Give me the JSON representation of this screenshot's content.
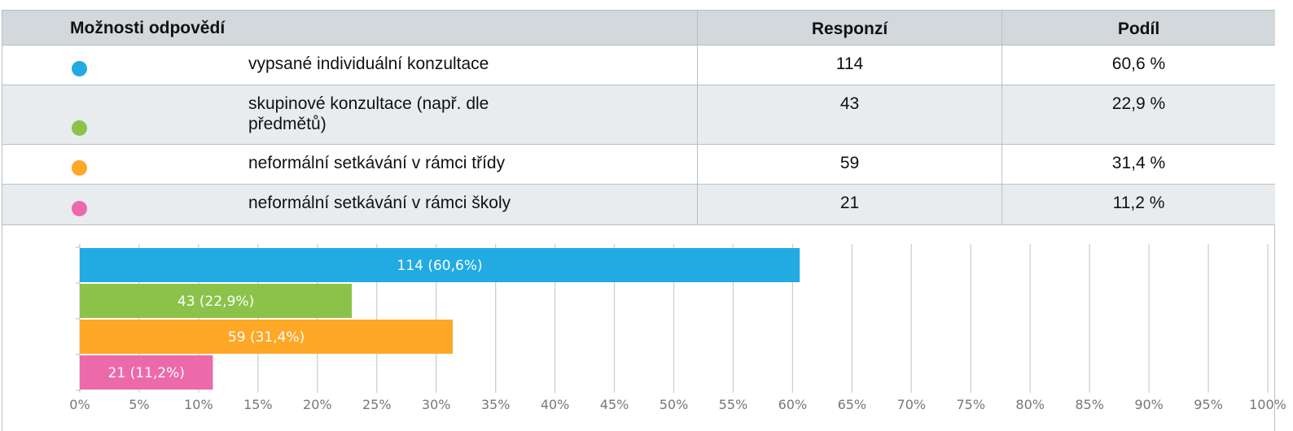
{
  "table": {
    "headers": [
      "Možnosti odpovědí",
      "Responzí",
      "Podíl"
    ],
    "rows": [
      [
        "vypsané individuální konzultace",
        114,
        "60,6 %"
      ],
      [
        "skupinové konzultace (např. dle předmětů)",
        43,
        "22,9 %"
      ],
      [
        "neformální setkávání v rámci třídy",
        59,
        "31,4 %"
      ],
      [
        "neformální setkávání v rámci  školy",
        21,
        "11,2 %"
      ]
    ]
  },
  "chart_data": {
    "type": "hbar",
    "values": [
      60.6,
      22.9,
      31.4,
      11.2
    ],
    "value_labels": [
      "114 (60,6%)",
      "43 (22,9%)",
      "59 (31,4%)",
      "21 (11,2%)"
    ],
    "colors": [
      "#22aae2",
      "#8bc34a",
      "#ffa726",
      "#ec6aa9"
    ],
    "xlim": [
      0,
      100
    ],
    "xticks": [
      {
        "value": 0,
        "label": "0%"
      },
      {
        "value": 5,
        "label": "5%"
      },
      {
        "value": 10,
        "label": "10%"
      },
      {
        "value": 15,
        "label": "15%"
      },
      {
        "value": 20,
        "label": "20%"
      },
      {
        "value": 25,
        "label": "25%"
      },
      {
        "value": 30,
        "label": "30%"
      },
      {
        "value": 35,
        "label": "35%"
      },
      {
        "value": 40,
        "label": "40%"
      },
      {
        "value": 45,
        "label": "45%"
      },
      {
        "value": 50,
        "label": "50%"
      },
      {
        "value": 55,
        "label": "55%"
      },
      {
        "value": 60,
        "label": "60%"
      },
      {
        "value": 65,
        "label": "65%"
      },
      {
        "value": 70,
        "label": "70%"
      },
      {
        "value": 75,
        "label": "75%"
      },
      {
        "value": 80,
        "label": "80%"
      },
      {
        "value": 85,
        "label": "85%"
      },
      {
        "value": 90,
        "label": "90%"
      },
      {
        "value": 95,
        "label": "95%"
      },
      {
        "value": 100,
        "label": "100%"
      }
    ],
    "grid": true
  }
}
